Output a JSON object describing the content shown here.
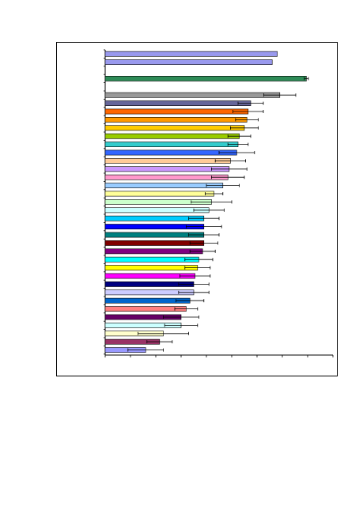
{
  "chart_data": {
    "type": "bar",
    "orientation": "horizontal",
    "error_bars": true,
    "grid": false,
    "legend": "none",
    "title": "",
    "xlabel": "",
    "ylabel": "",
    "xlim": [
      0,
      9
    ],
    "bars": [
      {
        "slot": 0,
        "value": 6.8,
        "error": 0.0,
        "color": "#9999ee"
      },
      {
        "slot": 1,
        "value": 6.6,
        "error": 0.0,
        "color": "#9999ee"
      },
      {
        "slot": 3,
        "value": 7.95,
        "error": 0.08,
        "color": "#2e8b57"
      },
      {
        "slot": 5,
        "value": 6.9,
        "error": 0.63,
        "color": "#999999"
      },
      {
        "slot": 6,
        "value": 5.75,
        "error": 0.5,
        "color": "#666699"
      },
      {
        "slot": 7,
        "value": 5.65,
        "error": 0.6,
        "color": "#ff6600"
      },
      {
        "slot": 8,
        "value": 5.6,
        "error": 0.45,
        "color": "#ff9900"
      },
      {
        "slot": 9,
        "value": 5.5,
        "error": 0.55,
        "color": "#ffcc00"
      },
      {
        "slot": 10,
        "value": 5.3,
        "error": 0.45,
        "color": "#99cc00"
      },
      {
        "slot": 11,
        "value": 5.25,
        "error": 0.4,
        "color": "#33cccc"
      },
      {
        "slot": 12,
        "value": 5.2,
        "error": 0.7,
        "color": "#3366ff"
      },
      {
        "slot": 13,
        "value": 4.95,
        "error": 0.6,
        "color": "#ffcc99"
      },
      {
        "slot": 14,
        "value": 4.9,
        "error": 0.7,
        "color": "#cc99ff"
      },
      {
        "slot": 15,
        "value": 4.85,
        "error": 0.65,
        "color": "#ff99cc"
      },
      {
        "slot": 16,
        "value": 4.65,
        "error": 0.65,
        "color": "#99ccff"
      },
      {
        "slot": 17,
        "value": 4.3,
        "error": 0.35,
        "color": "#ffff99"
      },
      {
        "slot": 18,
        "value": 4.2,
        "error": 0.8,
        "color": "#ccffcc"
      },
      {
        "slot": 19,
        "value": 4.1,
        "error": 0.6,
        "color": "#ccffff"
      },
      {
        "slot": 20,
        "value": 3.9,
        "error": 0.6,
        "color": "#00ccff"
      },
      {
        "slot": 21,
        "value": 3.9,
        "error": 0.7,
        "color": "#0000ff"
      },
      {
        "slot": 22,
        "value": 3.9,
        "error": 0.6,
        "color": "#008080"
      },
      {
        "slot": 23,
        "value": 3.9,
        "error": 0.55,
        "color": "#800000"
      },
      {
        "slot": 24,
        "value": 3.85,
        "error": 0.5,
        "color": "#800080"
      },
      {
        "slot": 25,
        "value": 3.7,
        "error": 0.55,
        "color": "#00ffff"
      },
      {
        "slot": 26,
        "value": 3.65,
        "error": 0.5,
        "color": "#ffff00"
      },
      {
        "slot": 27,
        "value": 3.55,
        "error": 0.6,
        "color": "#ff00ff"
      },
      {
        "slot": 28,
        "value": 3.5,
        "error": 0.6,
        "color": "#000080"
      },
      {
        "slot": 29,
        "value": 3.5,
        "error": 0.6,
        "color": "#ccccff"
      },
      {
        "slot": 30,
        "value": 3.35,
        "error": 0.55,
        "color": "#0066cc"
      },
      {
        "slot": 31,
        "value": 3.2,
        "error": 0.45,
        "color": "#ff8080"
      },
      {
        "slot": 32,
        "value": 3.0,
        "error": 0.7,
        "color": "#660066"
      },
      {
        "slot": 33,
        "value": 3.0,
        "error": 0.65,
        "color": "#ccffff"
      },
      {
        "slot": 34,
        "value": 2.3,
        "error": 1.0,
        "color": "#ffffcc"
      },
      {
        "slot": 35,
        "value": 2.15,
        "error": 0.5,
        "color": "#993366"
      },
      {
        "slot": 36,
        "value": 1.6,
        "error": 0.7,
        "color": "#9999ff"
      }
    ]
  }
}
